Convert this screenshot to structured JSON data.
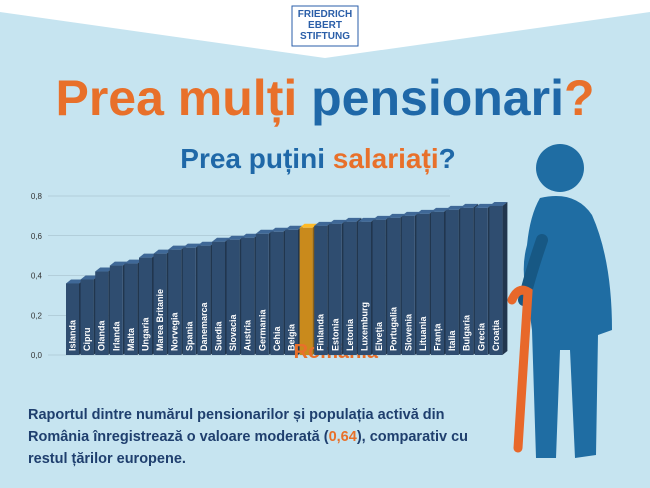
{
  "header": {
    "logo": [
      "FRIEDRICH",
      "EBERT",
      "STIFTUNG"
    ],
    "title_parts": [
      "Prea mulți ",
      "pensionari",
      "?"
    ],
    "subtitle_parts": [
      "Prea puțini ",
      "salariați",
      "?"
    ]
  },
  "chart_data": {
    "type": "bar",
    "categories": [
      "Islanda",
      "Cipru",
      "Olanda",
      "Irlanda",
      "Malta",
      "Ungaria",
      "Marea Britanie",
      "Norvegia",
      "Spania",
      "Danemarca",
      "Suedia",
      "Slovacia",
      "Austria",
      "Germania",
      "Cehia",
      "Belgia",
      "România",
      "Finlanda",
      "Estonia",
      "Letonia",
      "Luxemburg",
      "Elveția",
      "Portugalia",
      "Slovenia",
      "Lituania",
      "Franța",
      "Italia",
      "Bulgaria",
      "Grecia",
      "Croația"
    ],
    "values": [
      0.36,
      0.38,
      0.42,
      0.45,
      0.46,
      0.49,
      0.51,
      0.53,
      0.54,
      0.55,
      0.57,
      0.58,
      0.59,
      0.61,
      0.62,
      0.63,
      0.64,
      0.65,
      0.66,
      0.67,
      0.67,
      0.68,
      0.69,
      0.7,
      0.71,
      0.72,
      0.73,
      0.74,
      0.74,
      0.75
    ],
    "color": "#2f4d70",
    "colors": [
      "#2f4d70",
      "#2f4d70",
      "#2f4d70",
      "#2f4d70",
      "#2f4d70",
      "#2f4d70",
      "#2f4d70",
      "#2f4d70",
      "#2f4d70",
      "#2f4d70",
      "#2f4d70",
      "#2f4d70",
      "#2f4d70",
      "#2f4d70",
      "#2f4d70",
      "#2f4d70",
      "#c98a1c",
      "#2f4d70",
      "#2f4d70",
      "#2f4d70",
      "#2f4d70",
      "#2f4d70",
      "#2f4d70",
      "#2f4d70",
      "#2f4d70",
      "#2f4d70",
      "#2f4d70",
      "#2f4d70",
      "#2f4d70",
      "#2f4d70"
    ],
    "ylim": [
      0,
      0.8
    ],
    "yticks": [
      {
        "value": 0,
        "label": "0,0"
      },
      {
        "value": 0.2,
        "label": "0,2"
      },
      {
        "value": 0.4,
        "label": "0,4"
      },
      {
        "value": 0.6,
        "label": "0,6"
      },
      {
        "value": 0.8,
        "label": "0,8"
      }
    ],
    "grid": true
  },
  "footer": {
    "before": "Raportul dintre numărul pensionarilor și populația activă din România înregistrează o valoare moderată (",
    "highlight": "0,64",
    "after": "), comparativ cu restul țărilor europene."
  }
}
